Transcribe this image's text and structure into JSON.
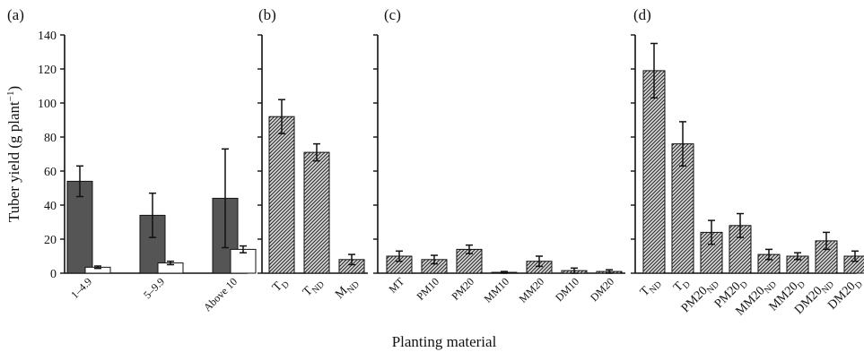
{
  "figure": {
    "ylabel": "Tuber yield (g plant⁻¹)",
    "ylabel_parts": {
      "main": "Tuber yield (g plant",
      "sup": "−1",
      "close": ")"
    },
    "xlabel": "Planting material",
    "y_ticks": [
      "0",
      "20",
      "40",
      "60",
      "80",
      "100",
      "120",
      "140"
    ]
  },
  "chart_data": [
    {
      "type": "bar",
      "panel_label": "(a)",
      "categories": [
        "1–4.9",
        "5–9.9",
        "Above 10"
      ],
      "ylim": [
        0,
        140
      ],
      "ylabel": "Tuber yield (g plant −1)",
      "series": [
        {
          "values": [
            54,
            34,
            44
          ],
          "errors": [
            9,
            13,
            29
          ],
          "color": "#555555",
          "fill": "solid"
        },
        {
          "values": [
            3.5,
            6,
            14
          ],
          "errors": [
            0.7,
            1,
            2
          ],
          "color": "#ffffff",
          "fill": "solid"
        }
      ]
    },
    {
      "type": "bar",
      "panel_label": "(b)",
      "categories": [
        "T_D",
        "T_ND",
        "M_ND"
      ],
      "category_parts": [
        [
          "T",
          "D"
        ],
        [
          "T",
          "ND"
        ],
        [
          "M",
          "ND"
        ]
      ],
      "ylim": [
        0,
        140
      ],
      "series": [
        {
          "values": [
            92,
            71,
            8
          ],
          "errors": [
            10,
            5,
            3
          ],
          "fill": "hatch"
        }
      ]
    },
    {
      "type": "bar",
      "panel_label": "(c)",
      "categories": [
        "MT",
        "PM10",
        "PM20",
        "MM10",
        "MM20",
        "DM10",
        "DM20"
      ],
      "category_parts": [
        [
          "MT",
          ""
        ],
        [
          "PM10",
          ""
        ],
        [
          "PM20",
          ""
        ],
        [
          "MM10",
          ""
        ],
        [
          "MM20",
          ""
        ],
        [
          "DM10",
          ""
        ],
        [
          "DM20",
          ""
        ]
      ],
      "ylim": [
        0,
        140
      ],
      "series": [
        {
          "values": [
            10,
            8,
            14,
            0.5,
            7,
            1.5,
            1
          ],
          "errors": [
            3,
            2.5,
            2.5,
            0.5,
            3,
            1.5,
            1
          ],
          "fill": "hatch"
        }
      ]
    },
    {
      "type": "bar",
      "panel_label": "(d)",
      "categories": [
        "T_ND",
        "T_D",
        "PM20_ND",
        "PM20_D",
        "MM20_ND",
        "MM20_D",
        "DM20_ND",
        "DM20_D"
      ],
      "category_parts": [
        [
          "T",
          "ND"
        ],
        [
          "T",
          "D"
        ],
        [
          "PM20",
          "ND"
        ],
        [
          "PM20",
          "D"
        ],
        [
          "MM20",
          "ND"
        ],
        [
          "MM20",
          "D"
        ],
        [
          "DM20",
          "ND"
        ],
        [
          "DM20",
          "D"
        ]
      ],
      "ylim": [
        0,
        140
      ],
      "series": [
        {
          "values": [
            119,
            76,
            24,
            28,
            11,
            10,
            19,
            10
          ],
          "errors": [
            16,
            13,
            7,
            7,
            3,
            2,
            5,
            3
          ],
          "fill": "hatch"
        }
      ]
    }
  ]
}
